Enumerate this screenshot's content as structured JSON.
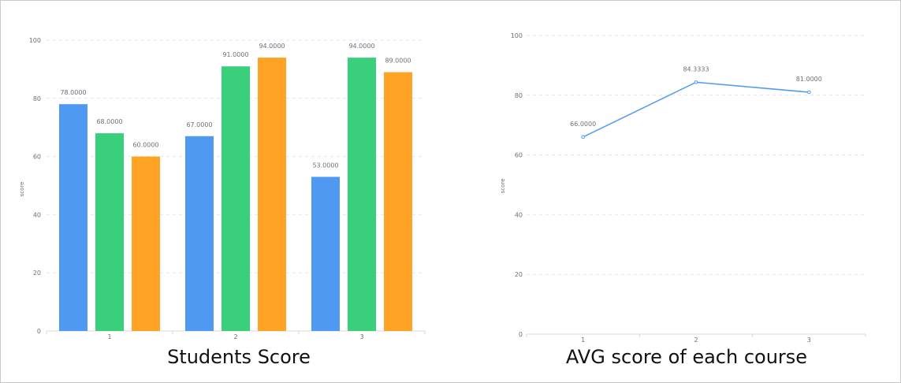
{
  "chart_data": [
    {
      "type": "bar",
      "title": "Students Score",
      "ylabel": "score",
      "xlabel": "",
      "categories": [
        "1",
        "2",
        "3"
      ],
      "ylim": [
        0,
        100
      ],
      "yticks": [
        0,
        20,
        40,
        60,
        80,
        100
      ],
      "grid": true,
      "series": [
        {
          "values": [
            78,
            67,
            53
          ],
          "labels": [
            "78.0000",
            "67.0000",
            "53.0000"
          ],
          "color": "#5099f2"
        },
        {
          "values": [
            68,
            91,
            94
          ],
          "labels": [
            "68.0000",
            "91.0000",
            "94.0000"
          ],
          "color": "#3ad07b"
        },
        {
          "values": [
            60,
            94,
            89
          ],
          "labels": [
            "60.0000",
            "94.0000",
            "89.0000"
          ],
          "color": "#ffa324"
        }
      ]
    },
    {
      "type": "line",
      "title": "AVG score of each course",
      "ylabel": "score",
      "xlabel": "",
      "categories": [
        "1",
        "2",
        "3"
      ],
      "ylim": [
        0,
        100
      ],
      "yticks": [
        0,
        20,
        40,
        60,
        80,
        100
      ],
      "grid": true,
      "series": [
        {
          "values": [
            66,
            84.3333,
            81
          ],
          "labels": [
            "66.0000",
            "84.3333",
            "81.0000"
          ],
          "color": "#5099f2"
        }
      ]
    }
  ]
}
